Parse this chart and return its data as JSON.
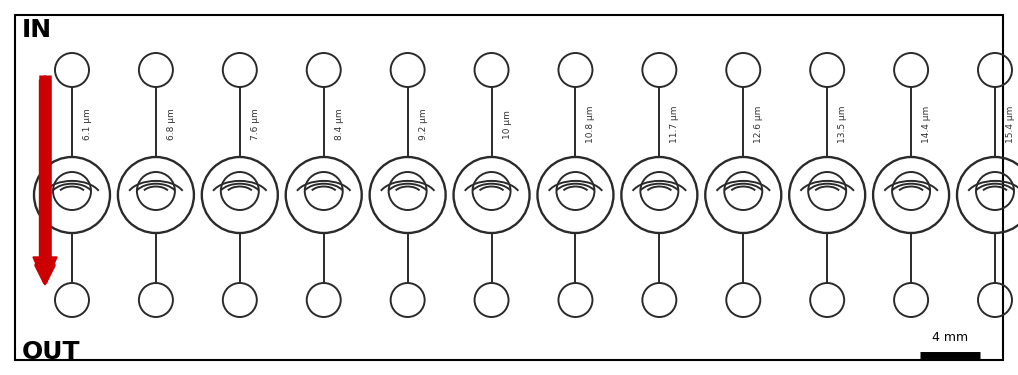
{
  "labels": [
    "6.1 μm",
    "6.8 μm",
    "7.6 μm",
    "8.4 μm",
    "9.2 μm",
    "10 μm",
    "10.8 μm",
    "11.7 μm",
    "12.6 μm",
    "13.5 μm",
    "14.4 μm",
    "15.4 μm"
  ],
  "n_filters": 12,
  "bg_color": "#ffffff",
  "line_color": "#2a2a2a",
  "arrow_color": "#cc0000",
  "in_label": "IN",
  "out_label": "OUT",
  "scale_label": "4 mm",
  "figsize": [
    10.18,
    3.75
  ],
  "dpi": 100
}
